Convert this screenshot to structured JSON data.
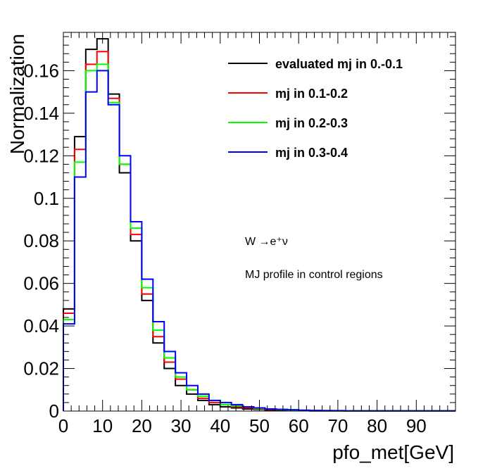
{
  "chart_data": {
    "type": "step-histogram",
    "xlabel": "pfo_met[GeV]",
    "ylabel": "Normalization",
    "xlim": [
      0,
      100
    ],
    "ylim": [
      0,
      0.178
    ],
    "bin_width": 2.857,
    "x_ticks": [
      "0",
      "10",
      "20",
      "30",
      "40",
      "50",
      "60",
      "70",
      "80",
      "90"
    ],
    "y_ticks": [
      "0",
      "0.02",
      "0.04",
      "0.06",
      "0.08",
      "0.1",
      "0.12",
      "0.14",
      "0.16"
    ],
    "legend_position": "top-right",
    "series": [
      {
        "name": "evaluated mj in 0.-0.1",
        "color": "#000000",
        "values": [
          0.048,
          0.129,
          0.17,
          0.175,
          0.149,
          0.112,
          0.08,
          0.052,
          0.032,
          0.02,
          0.012,
          0.008,
          0.005,
          0.003,
          0.002,
          0.0015,
          0.001,
          0.0008,
          0.0005,
          0.0004,
          0.0003,
          0.0002,
          0.0001,
          0.0001,
          0.0001,
          0.0001,
          0.0001,
          0.0001,
          0.0001,
          0.0001,
          0.0001,
          0.0001,
          0.0001,
          0.0001,
          0.0001
        ]
      },
      {
        "name": "mj in 0.1-0.2",
        "color": "#ff0000",
        "values": [
          0.046,
          0.123,
          0.163,
          0.169,
          0.147,
          0.116,
          0.083,
          0.055,
          0.035,
          0.023,
          0.015,
          0.01,
          0.006,
          0.004,
          0.003,
          0.002,
          0.0015,
          0.001,
          0.0008,
          0.0006,
          0.0004,
          0.0003,
          0.0002,
          0.0002,
          0.0001,
          0.0001,
          0.0001,
          0.0001,
          0.0001,
          0.0001,
          0.0001,
          0.0001,
          0.0001,
          0.0001,
          0.0001
        ]
      },
      {
        "name": "mj in 0.2-0.3",
        "color": "#00ff00",
        "values": [
          0.043,
          0.117,
          0.16,
          0.163,
          0.145,
          0.116,
          0.086,
          0.058,
          0.038,
          0.025,
          0.016,
          0.01,
          0.007,
          0.005,
          0.003,
          0.0025,
          0.002,
          0.0012,
          0.001,
          0.0007,
          0.0005,
          0.0003,
          0.0002,
          0.0002,
          0.0001,
          0.0001,
          0.0001,
          0.0001,
          0.0001,
          0.0001,
          0.0001,
          0.0001,
          0.0001,
          0.0001,
          0.0001
        ]
      },
      {
        "name": "mj in 0.3-0.4",
        "color": "#0000ff",
        "values": [
          0.041,
          0.11,
          0.15,
          0.16,
          0.144,
          0.12,
          0.089,
          0.062,
          0.042,
          0.028,
          0.018,
          0.012,
          0.008,
          0.005,
          0.004,
          0.003,
          0.002,
          0.0015,
          0.001,
          0.0008,
          0.0006,
          0.0004,
          0.0003,
          0.0002,
          0.0002,
          0.0001,
          0.0001,
          0.0001,
          0.0001,
          0.0001,
          0.0001,
          0.0001,
          0.0001,
          0.0001,
          0.0001
        ]
      }
    ],
    "annotations": [
      "W →e⁺ν",
      "MJ profile in control regions"
    ]
  }
}
